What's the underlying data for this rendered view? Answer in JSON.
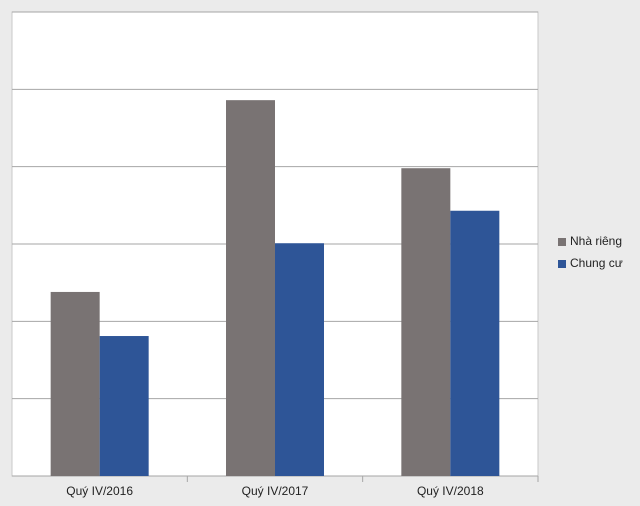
{
  "chart_data": {
    "type": "bar",
    "categories": [
      "Quý IV/2016",
      "Quý IV/2017",
      "Quý IV/2018"
    ],
    "series": [
      {
        "name": "Nhà riêng",
        "color": "#797373",
        "values": [
          2.38,
          4.86,
          3.98
        ]
      },
      {
        "name": "Chung cư",
        "color": "#2e5597",
        "values": [
          1.81,
          3.01,
          3.43
        ]
      }
    ],
    "ylim": [
      0,
      6
    ],
    "yticks": [
      0,
      1,
      2,
      3,
      4,
      5,
      6
    ],
    "ytick_labels": false,
    "grid": true,
    "legend": "right"
  }
}
